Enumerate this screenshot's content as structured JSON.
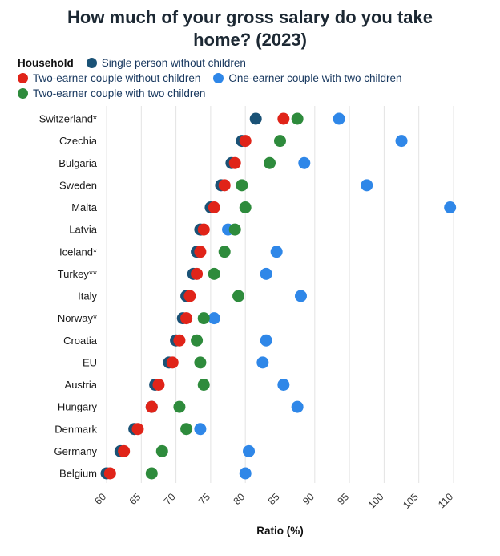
{
  "title": "How much of your gross salary do you take home? (2023)",
  "legend_title": "Household",
  "chart_data": {
    "type": "scatter",
    "subtype": "horizontal-dot-plot",
    "title": "How much of your gross salary do you take home? (2023)",
    "xlabel": "Ratio (%)",
    "ylabel": "",
    "x_ticks": [
      60,
      65,
      70,
      75,
      80,
      85,
      90,
      95,
      100,
      105,
      110
    ],
    "xlim": [
      60,
      110
    ],
    "grid": "vertical",
    "legend_position": "top",
    "categories": [
      "Switzerland*",
      "Czechia",
      "Bulgaria",
      "Sweden",
      "Malta",
      "Latvia",
      "Iceland*",
      "Turkey**",
      "Italy",
      "Norway*",
      "Croatia",
      "EU",
      "Austria",
      "Hungary",
      "Denmark",
      "Germany",
      "Belgium"
    ],
    "series": [
      {
        "name": "Single person without children",
        "color": "#1a5276",
        "values": [
          81.5,
          79.5,
          78,
          76.5,
          75,
          73.5,
          73,
          72.5,
          71.5,
          71,
          70,
          69,
          67,
          66.5,
          64,
          62,
          60
        ]
      },
      {
        "name": "Two-earner couple without children",
        "color": "#e02419",
        "values": [
          85.5,
          80,
          78.5,
          77,
          75.5,
          74,
          73.5,
          73,
          72,
          71.5,
          70.5,
          69.5,
          67.5,
          66.5,
          64.5,
          62.5,
          60.5
        ]
      },
      {
        "name": "One-earner couple with two children",
        "color": "#2f87e8",
        "values": [
          93.5,
          102.5,
          88.5,
          97.5,
          109.5,
          77.5,
          84.5,
          83,
          88,
          75.5,
          83,
          82.5,
          85.5,
          87.5,
          73.5,
          80.5,
          80
        ]
      },
      {
        "name": "Two-earner couple with two children",
        "color": "#2e8b3c",
        "values": [
          87.5,
          85,
          83.5,
          79.5,
          80,
          78.5,
          77,
          75.5,
          79,
          74,
          73,
          73.5,
          74,
          70.5,
          71.5,
          68,
          66.5
        ]
      }
    ]
  }
}
